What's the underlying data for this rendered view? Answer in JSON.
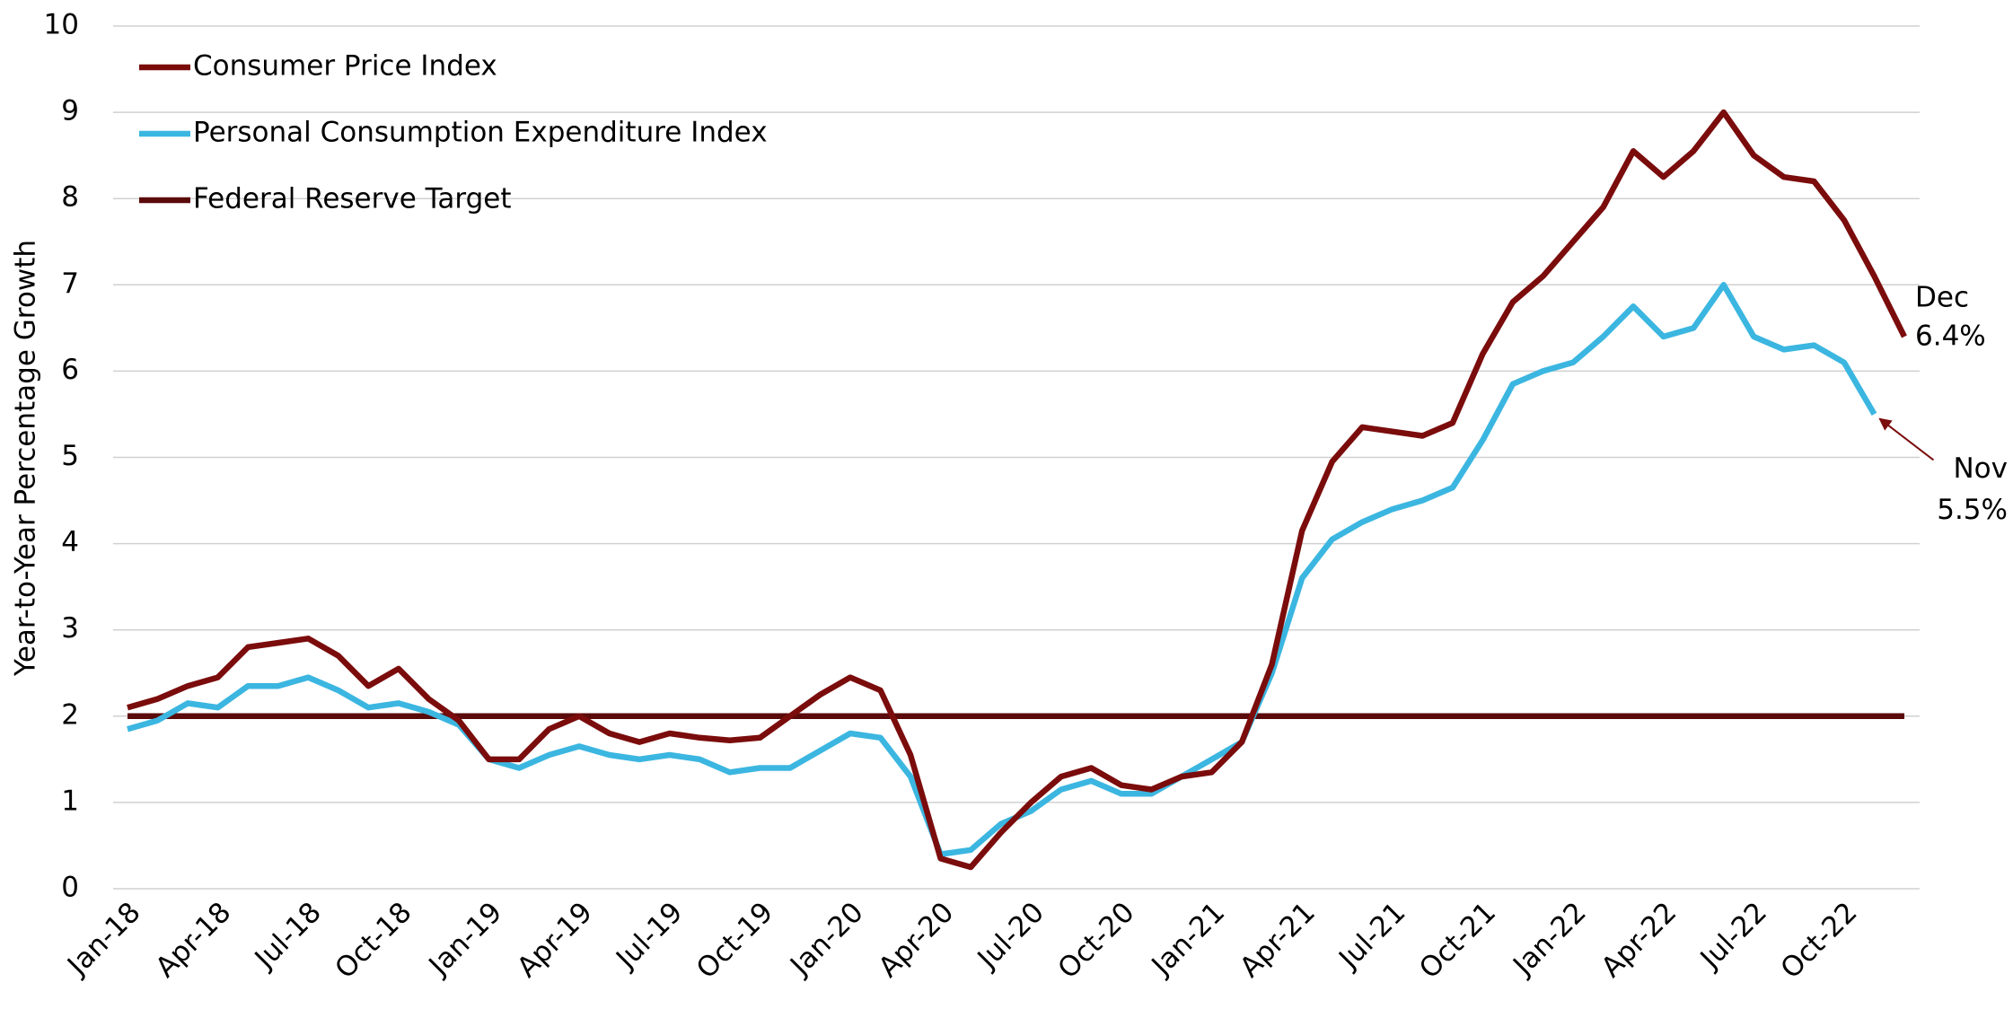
{
  "chart_data": {
    "type": "line",
    "y_label": "Year-to-Year Percentage Growth",
    "categories": [
      "Jan-18",
      null,
      null,
      "Apr-18",
      null,
      null,
      "Jul-18",
      null,
      null,
      "Oct-18",
      null,
      null,
      "Jan-19",
      null,
      null,
      "Apr-19",
      null,
      null,
      "Jul-19",
      null,
      null,
      "Oct-19",
      null,
      null,
      "Jan-20",
      null,
      null,
      "Apr-20",
      null,
      null,
      "Jul-20",
      null,
      null,
      "Oct-20",
      null,
      null,
      "Jan-21",
      null,
      null,
      "Apr-21",
      null,
      null,
      "Jul-21",
      null,
      null,
      "Oct-21",
      null,
      null,
      "Jan-22",
      null,
      null,
      "Apr-22",
      null,
      null,
      "Jul-22",
      null,
      null,
      "Oct-22",
      null,
      null
    ],
    "series": [
      {
        "name": "Consumer Price Index",
        "color": "#7b0c0c",
        "values": [
          2.1,
          2.2,
          2.35,
          2.45,
          2.8,
          2.85,
          2.9,
          2.7,
          2.35,
          2.55,
          2.2,
          1.95,
          1.5,
          1.5,
          1.85,
          2.0,
          1.8,
          1.7,
          1.8,
          1.75,
          1.72,
          1.75,
          2.0,
          2.25,
          2.45,
          2.3,
          1.55,
          0.35,
          0.25,
          0.65,
          1.0,
          1.3,
          1.4,
          1.2,
          1.15,
          1.3,
          1.35,
          1.7,
          2.6,
          4.15,
          4.95,
          5.35,
          5.3,
          5.25,
          5.4,
          6.2,
          6.8,
          7.1,
          7.5,
          7.9,
          8.55,
          8.25,
          8.55,
          9.0,
          8.5,
          8.25,
          8.2,
          7.75,
          7.1,
          6.4
        ]
      },
      {
        "name": "Personal Consumption Expenditure Index",
        "color": "#3bb6e0",
        "values": [
          1.85,
          1.95,
          2.15,
          2.1,
          2.35,
          2.35,
          2.45,
          2.3,
          2.1,
          2.15,
          2.05,
          1.9,
          1.5,
          1.4,
          1.55,
          1.65,
          1.55,
          1.5,
          1.55,
          1.5,
          1.35,
          1.4,
          1.4,
          1.6,
          1.8,
          1.75,
          1.3,
          0.4,
          0.45,
          0.75,
          0.9,
          1.15,
          1.25,
          1.1,
          1.1,
          1.3,
          1.5,
          1.7,
          2.5,
          3.6,
          4.05,
          4.25,
          4.4,
          4.5,
          4.65,
          5.2,
          5.85,
          6.0,
          6.1,
          6.4,
          6.75,
          6.4,
          6.5,
          7.0,
          6.4,
          6.25,
          6.3,
          6.1,
          5.5,
          null
        ]
      },
      {
        "name": "Federal Reserve Target",
        "color": "#5a0a0a",
        "values": [
          2,
          2,
          2,
          2,
          2,
          2,
          2,
          2,
          2,
          2,
          2,
          2,
          2,
          2,
          2,
          2,
          2,
          2,
          2,
          2,
          2,
          2,
          2,
          2,
          2,
          2,
          2,
          2,
          2,
          2,
          2,
          2,
          2,
          2,
          2,
          2,
          2,
          2,
          2,
          2,
          2,
          2,
          2,
          2,
          2,
          2,
          2,
          2,
          2,
          2,
          2,
          2,
          2,
          2,
          2,
          2,
          2,
          2,
          2,
          2
        ]
      }
    ],
    "annotations": [
      {
        "series": 0,
        "index": 59,
        "lines": [
          "Dec",
          "6.4%"
        ]
      },
      {
        "series": 1,
        "index": 58,
        "lines": [
          "Nov",
          "5.5%"
        ]
      }
    ],
    "ylim": [
      0,
      10
    ],
    "yticks": [
      0,
      1,
      2,
      3,
      4,
      5,
      6,
      7,
      8,
      9,
      10
    ],
    "grid": true,
    "legend": "top-left"
  }
}
